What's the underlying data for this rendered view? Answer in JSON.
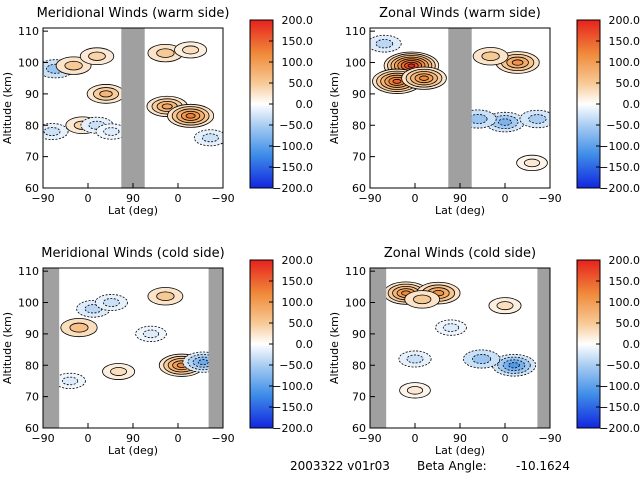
{
  "footer": {
    "id_text": "2003322 v01r03",
    "beta_label": "Beta Angle:",
    "beta_value": "-10.1624"
  },
  "colors": {
    "max": "#e6211e",
    "high": "#f08a3a",
    "mid_warm": "#f7c995",
    "zero": "#ffffff",
    "mid_cool": "#a9cdf2",
    "low": "#3f8ee8",
    "min": "#1226e0",
    "mask": "#a0a0a0",
    "contour": "#000000"
  },
  "chart_data": [
    {
      "type": "heatmap",
      "title": "Meridional Winds (warm side)",
      "xlabel": "Lat (deg)",
      "ylabel": "Altitude (km)",
      "x_tick_labels": [
        "−90",
        "0",
        "90",
        "0",
        "−90"
      ],
      "y_ticks": [
        60,
        70,
        80,
        90,
        100,
        110
      ],
      "ylim": [
        60,
        111
      ],
      "colorbar": {
        "range": [
          -200,
          200
        ],
        "tick_labels": [
          "200.0",
          "150.0",
          "100.0",
          "50.0",
          "0.0",
          "−50.0",
          "−100.0",
          "−150.0",
          "−200.0"
        ]
      },
      "masked_bands": [
        [
          0.435,
          0.565
        ]
      ],
      "features": [
        {
          "x": 0.07,
          "alt": 98,
          "value": -60
        },
        {
          "x": 0.17,
          "alt": 99,
          "value": 50
        },
        {
          "x": 0.22,
          "alt": 80,
          "value": 40
        },
        {
          "x": 0.3,
          "alt": 102,
          "value": 40
        },
        {
          "x": 0.3,
          "alt": 80,
          "value": -30
        },
        {
          "x": 0.35,
          "alt": 90,
          "value": 70
        },
        {
          "x": 0.05,
          "alt": 78,
          "value": -30
        },
        {
          "x": 0.38,
          "alt": 78,
          "value": -20
        },
        {
          "x": 0.69,
          "alt": 86,
          "value": 90
        },
        {
          "x": 0.82,
          "alt": 83,
          "value": 130
        },
        {
          "x": 0.68,
          "alt": 103,
          "value": 50
        },
        {
          "x": 0.82,
          "alt": 104,
          "value": 30
        },
        {
          "x": 0.93,
          "alt": 76,
          "value": -30
        }
      ]
    },
    {
      "type": "heatmap",
      "title": "Zonal Winds (warm side)",
      "xlabel": "Lat (deg)",
      "ylabel": "Altitude (km)",
      "x_tick_labels": [
        "−90",
        "0",
        "90",
        "0",
        "−90"
      ],
      "y_ticks": [
        60,
        70,
        80,
        90,
        100,
        110
      ],
      "ylim": [
        60,
        111
      ],
      "colorbar": {
        "range": [
          -200,
          200
        ],
        "tick_labels": [
          "200.0",
          "150.0",
          "100.0",
          "50.0",
          "0.0",
          "−50.0",
          "−100.0",
          "−150.0",
          "−200.0"
        ]
      },
      "masked_bands": [
        [
          0.435,
          0.565
        ]
      ],
      "features": [
        {
          "x": 0.23,
          "alt": 99,
          "value": 190
        },
        {
          "x": 0.15,
          "alt": 94,
          "value": 150
        },
        {
          "x": 0.3,
          "alt": 95,
          "value": 120
        },
        {
          "x": 0.08,
          "alt": 106,
          "value": -40
        },
        {
          "x": 0.82,
          "alt": 100,
          "value": 110
        },
        {
          "x": 0.67,
          "alt": 102,
          "value": 50
        },
        {
          "x": 0.75,
          "alt": 81,
          "value": -80
        },
        {
          "x": 0.6,
          "alt": 82,
          "value": -60
        },
        {
          "x": 0.93,
          "alt": 82,
          "value": -50
        },
        {
          "x": 0.9,
          "alt": 68,
          "value": 20
        }
      ]
    },
    {
      "type": "heatmap",
      "title": "Meridional Winds (cold side)",
      "xlabel": "Lat (deg)",
      "ylabel": "Altitude (km)",
      "x_tick_labels": [
        "−90",
        "0",
        "90",
        "0",
        "−90"
      ],
      "y_ticks": [
        60,
        70,
        80,
        90,
        100,
        110
      ],
      "ylim": [
        60,
        111
      ],
      "colorbar": {
        "range": [
          -200,
          200
        ],
        "tick_labels": [
          "200.0",
          "150.0",
          "100.0",
          "50.0",
          "0.0",
          "−50.0",
          "−100.0",
          "−150.0",
          "−200.0"
        ]
      },
      "masked_bands": [
        [
          0.0,
          0.09
        ],
        [
          0.92,
          1.0
        ]
      ],
      "features": [
        {
          "x": 0.2,
          "alt": 92,
          "value": 60
        },
        {
          "x": 0.28,
          "alt": 98,
          "value": -40
        },
        {
          "x": 0.38,
          "alt": 100,
          "value": -30
        },
        {
          "x": 0.68,
          "alt": 102,
          "value": 50
        },
        {
          "x": 0.77,
          "alt": 80,
          "value": 120
        },
        {
          "x": 0.89,
          "alt": 81,
          "value": -90
        },
        {
          "x": 0.6,
          "alt": 90,
          "value": -20
        },
        {
          "x": 0.42,
          "alt": 78,
          "value": 30
        },
        {
          "x": 0.15,
          "alt": 75,
          "value": -20
        }
      ]
    },
    {
      "type": "heatmap",
      "title": "Zonal Winds (cold side)",
      "xlabel": "Lat (deg)",
      "ylabel": "Altitude (km)",
      "x_tick_labels": [
        "−90",
        "0",
        "90",
        "0",
        "−90"
      ],
      "y_ticks": [
        60,
        70,
        80,
        90,
        100,
        110
      ],
      "ylim": [
        60,
        111
      ],
      "colorbar": {
        "range": [
          -200,
          200
        ],
        "tick_labels": [
          "200.0",
          "150.0",
          "100.0",
          "50.0",
          "0.0",
          "−50.0",
          "−100.0",
          "−150.0",
          "−200.0"
        ]
      },
      "masked_bands": [
        [
          0.0,
          0.09
        ],
        [
          0.93,
          1.0
        ]
      ],
      "features": [
        {
          "x": 0.2,
          "alt": 103,
          "value": 120
        },
        {
          "x": 0.38,
          "alt": 103,
          "value": 110
        },
        {
          "x": 0.29,
          "alt": 101,
          "value": 50
        },
        {
          "x": 0.75,
          "alt": 99,
          "value": 30
        },
        {
          "x": 0.8,
          "alt": 80,
          "value": -110
        },
        {
          "x": 0.62,
          "alt": 82,
          "value": -60
        },
        {
          "x": 0.25,
          "alt": 82,
          "value": -30
        },
        {
          "x": 0.45,
          "alt": 92,
          "value": -20
        },
        {
          "x": 0.25,
          "alt": 72,
          "value": 20
        }
      ]
    }
  ]
}
